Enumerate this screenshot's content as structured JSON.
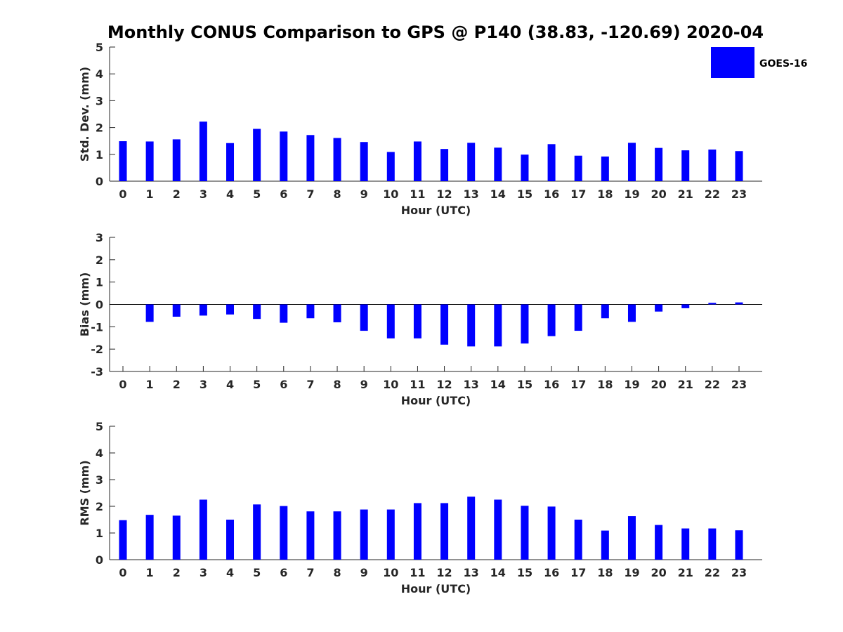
{
  "title": "Monthly CONUS Comparison to GPS @ P140 (38.83, -120.69) 2020-04",
  "legend": {
    "label": "GOES-16",
    "color": "#0000ff",
    "placement": "top-right"
  },
  "chart_data": [
    {
      "type": "bar",
      "xlabel": "Hour (UTC)",
      "ylabel": "Std. Dev. (mm)",
      "ylim": [
        0,
        5
      ],
      "yticks": [
        0,
        1,
        2,
        3,
        4,
        5
      ],
      "categories": [
        0,
        1,
        2,
        3,
        4,
        5,
        6,
        7,
        8,
        9,
        10,
        11,
        12,
        13,
        14,
        15,
        16,
        17,
        18,
        19,
        20,
        21,
        22,
        23
      ],
      "series": [
        {
          "name": "GOES-16",
          "color": "#0000ff",
          "values": [
            1.49,
            1.48,
            1.56,
            2.22,
            1.42,
            1.95,
            1.85,
            1.72,
            1.61,
            1.46,
            1.09,
            1.48,
            1.2,
            1.43,
            1.25,
            0.99,
            1.38,
            0.95,
            0.92,
            1.43,
            1.24,
            1.15,
            1.18,
            1.12
          ]
        }
      ]
    },
    {
      "type": "bar",
      "xlabel": "Hour (UTC)",
      "ylabel": "Bias (mm)",
      "ylim": [
        -3,
        3
      ],
      "yticks": [
        -3,
        -2,
        -1,
        0,
        1,
        2,
        3
      ],
      "categories": [
        0,
        1,
        2,
        3,
        4,
        5,
        6,
        7,
        8,
        9,
        10,
        11,
        12,
        13,
        14,
        15,
        16,
        17,
        18,
        19,
        20,
        21,
        22,
        23
      ],
      "series": [
        {
          "name": "GOES-16",
          "color": "#0000ff",
          "values": [
            0.0,
            -0.78,
            -0.55,
            -0.5,
            -0.45,
            -0.65,
            -0.82,
            -0.62,
            -0.8,
            -1.18,
            -1.52,
            -1.52,
            -1.8,
            -1.88,
            -1.88,
            -1.75,
            -1.42,
            -1.18,
            -0.62,
            -0.78,
            -0.32,
            -0.17,
            0.07,
            0.09
          ]
        }
      ]
    },
    {
      "type": "bar",
      "xlabel": "Hour (UTC)",
      "ylabel": "RMS (mm)",
      "ylim": [
        0,
        5
      ],
      "yticks": [
        0,
        1,
        2,
        3,
        4,
        5
      ],
      "categories": [
        0,
        1,
        2,
        3,
        4,
        5,
        6,
        7,
        8,
        9,
        10,
        11,
        12,
        13,
        14,
        15,
        16,
        17,
        18,
        19,
        20,
        21,
        22,
        23
      ],
      "series": [
        {
          "name": "GOES-16",
          "color": "#0000ff",
          "values": [
            1.48,
            1.68,
            1.65,
            2.25,
            1.5,
            2.07,
            2.01,
            1.81,
            1.81,
            1.88,
            1.88,
            2.12,
            2.12,
            2.36,
            2.25,
            2.02,
            1.99,
            1.5,
            1.09,
            1.63,
            1.3,
            1.17,
            1.17,
            1.1
          ]
        }
      ]
    }
  ]
}
